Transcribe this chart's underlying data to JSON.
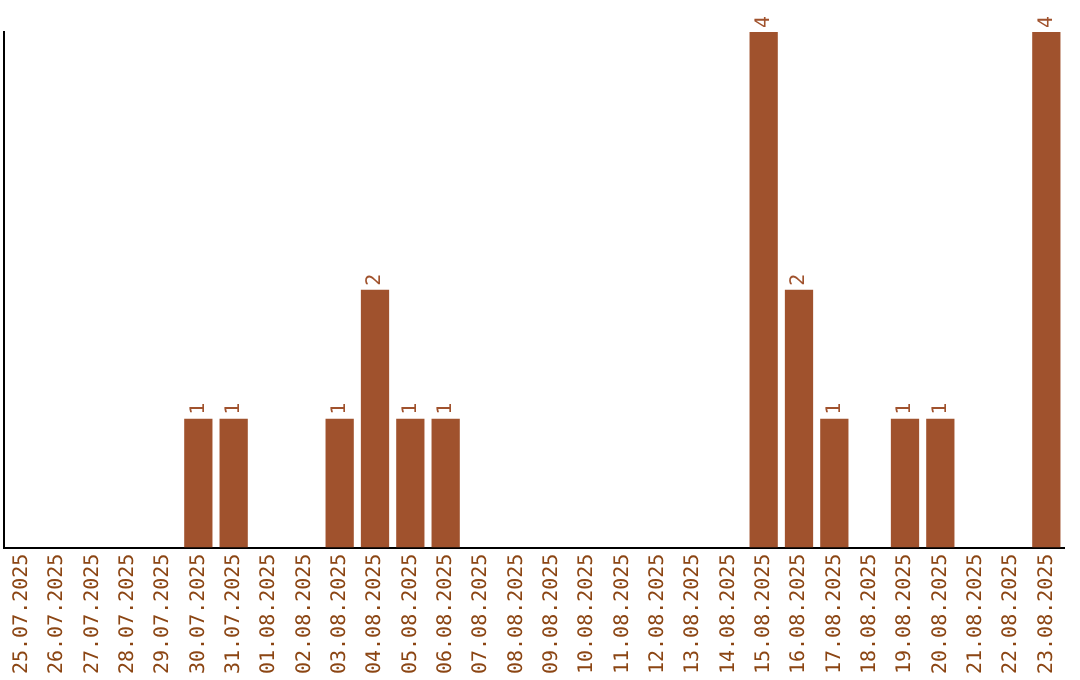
{
  "chart_data": {
    "type": "bar",
    "categories": [
      "25.07.2025",
      "26.07.2025",
      "27.07.2025",
      "28.07.2025",
      "29.07.2025",
      "30.07.2025",
      "31.07.2025",
      "01.08.2025",
      "02.08.2025",
      "03.08.2025",
      "04.08.2025",
      "05.08.2025",
      "06.08.2025",
      "07.08.2025",
      "08.08.2025",
      "09.08.2025",
      "10.08.2025",
      "11.08.2025",
      "12.08.2025",
      "13.08.2025",
      "14.08.2025",
      "15.08.2025",
      "16.08.2025",
      "17.08.2025",
      "18.08.2025",
      "19.08.2025",
      "20.08.2025",
      "21.08.2025",
      "22.08.2025",
      "23.08.2025"
    ],
    "values": [
      0,
      0,
      0,
      0,
      0,
      1,
      1,
      0,
      0,
      1,
      2,
      1,
      1,
      0,
      0,
      0,
      0,
      0,
      0,
      0,
      0,
      4,
      2,
      1,
      0,
      1,
      1,
      0,
      0,
      4
    ],
    "value_labels": [
      null,
      null,
      null,
      null,
      null,
      "1",
      "1",
      null,
      null,
      "1",
      "2",
      "1",
      "1",
      null,
      null,
      null,
      null,
      null,
      null,
      null,
      null,
      "4",
      "2",
      "1",
      null,
      "1",
      "1",
      null,
      null,
      "4"
    ],
    "color": "#a0522d",
    "tick_labels": "x",
    "grid": false,
    "legend": false
  }
}
